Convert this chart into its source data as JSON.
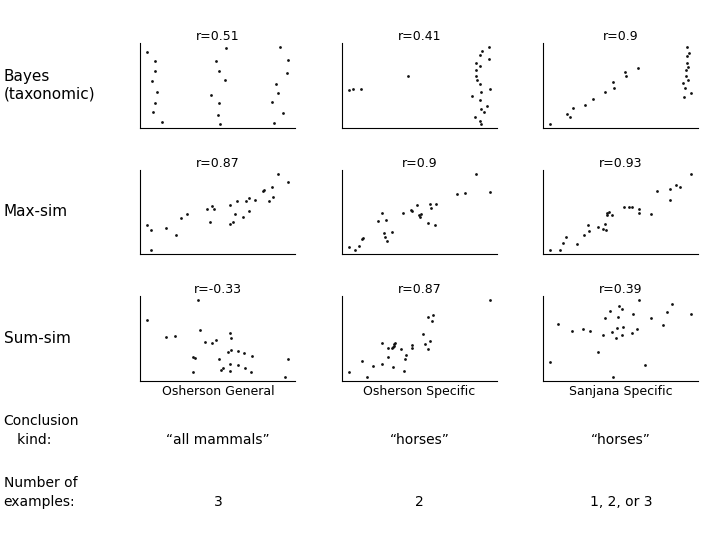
{
  "background_color": "#ffffff",
  "row_labels": [
    "Bayes\n(taxonomic)",
    "Max-sim",
    "Sum-sim"
  ],
  "col_labels": [
    "Osherson General",
    "Osherson Specific",
    "Sanjana Specific"
  ],
  "conclusion_kind_label_line1": "Conclusion",
  "conclusion_kind_label_line2": "   kind:",
  "conclusion_kinds": [
    "“all mammals”",
    "“horses”",
    "“horses”"
  ],
  "num_examples_label_line1": "Number of",
  "num_examples_label_line2": "examples:",
  "num_examples": [
    "3",
    "2",
    "1, 2, or 3"
  ],
  "r_values": [
    [
      "r=0.51",
      "r=0.41",
      "r=0.9"
    ],
    [
      "r=0.87",
      "r=0.9",
      "r=0.93"
    ],
    [
      "r=-0.33",
      "r=0.87",
      "r=0.39"
    ]
  ],
  "font_size_row_labels": 11,
  "font_size_r": 9,
  "font_size_col_labels": 9,
  "font_size_bottom": 10,
  "dot_color": "#111111",
  "dot_size": 4
}
